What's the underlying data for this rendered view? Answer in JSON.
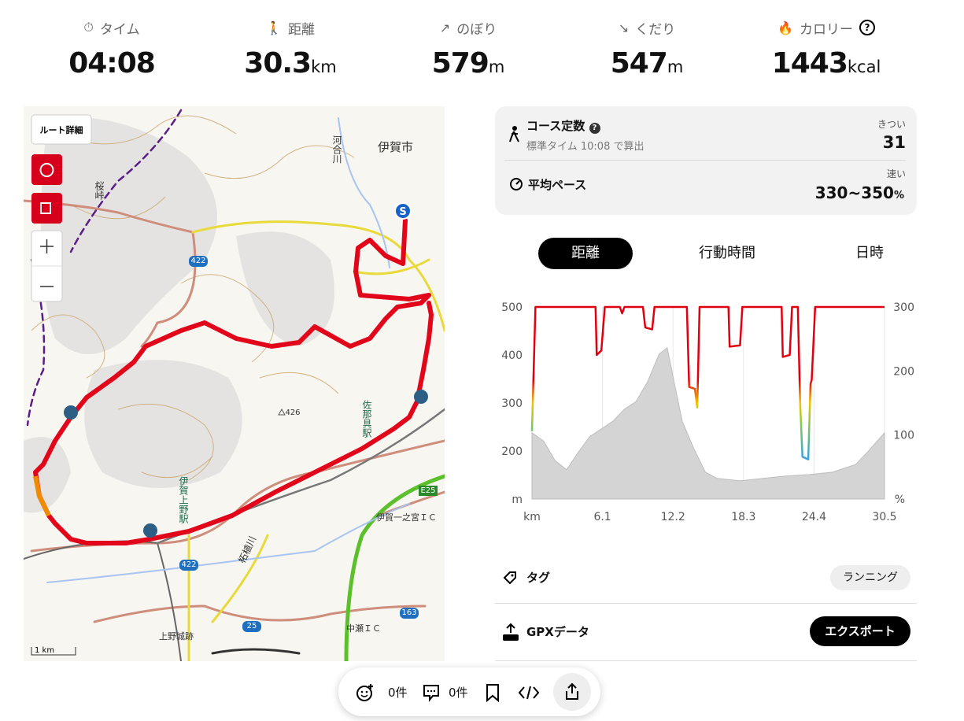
{
  "stats": [
    {
      "label": "タイム",
      "value": "04:08"
    },
    {
      "label": "距離",
      "value": 30.3,
      "unit": "km"
    },
    {
      "label": "のぼり",
      "value": 579,
      "unit": "m"
    },
    {
      "label": "くだり",
      "value": 547,
      "unit": "m"
    },
    {
      "label": "カロリー",
      "value": 1443,
      "unit": "kcal"
    }
  ],
  "map": {
    "button": "ルート詳細",
    "labels": [
      "伊賀市",
      "河合川",
      "桜峠",
      "422",
      "426",
      "佐那具駅",
      "伊賀上野駅",
      "E25",
      "伊賀一之宮ＩＣ",
      "柘植川",
      "上野城跡",
      "中瀬ＩＣ",
      "163",
      "25",
      "422"
    ],
    "scale": "1 km"
  },
  "course": {
    "title": "コース定数",
    "note": "標準タイム 10:08 で算出",
    "level": "きつい",
    "value": 31,
    "pace_title": "平均ペース",
    "pace_level": "速い",
    "pace_value": "330~350",
    "pace_unit": "%"
  },
  "tabs": [
    "距離",
    "行動時間",
    "日時"
  ],
  "active_tab": 0,
  "chart_data": {
    "type": "line",
    "x_label": "km",
    "y_label": "m",
    "y2_label": "%",
    "xlim": [
      0,
      30.5
    ],
    "xticks": [
      6.1,
      12.2,
      18.3,
      24.4,
      30.5
    ],
    "ylim": [
      100,
      500
    ],
    "yticks": [
      200,
      300,
      400,
      500
    ],
    "y2lim": [
      0,
      300
    ],
    "y2ticks": [
      100,
      200,
      300
    ],
    "grid": true,
    "series": [
      {
        "kind": "area",
        "color": "#d4d4d4",
        "x": [
          0,
          1,
          2,
          3,
          4,
          5,
          6,
          7,
          8,
          9,
          10,
          11,
          11.7,
          12.5,
          13,
          14,
          15,
          16,
          18,
          20,
          22,
          24,
          26,
          28,
          29,
          30.5
        ],
        "values": [
          238,
          221,
          180,
          161,
          197,
          230,
          246,
          262,
          287,
          303,
          344,
          402,
          415,
          320,
          262,
          205,
          156,
          143,
          138,
          143,
          148,
          151,
          156,
          172,
          197,
          238
        ]
      },
      {
        "kind": "line",
        "axis": "y2",
        "color": "#e00010",
        "x": [
          0,
          0.3,
          5.5,
          5.6,
          6.0,
          6.3,
          7.6,
          7.8,
          8.0,
          9.6,
          9.8,
          10.4,
          10.6,
          13.4,
          13.6,
          14.1,
          14.3,
          14.5,
          17.0,
          17.1,
          18.0,
          18.2,
          21.6,
          21.7,
          22.3,
          22.5,
          23.0,
          23.2,
          23.4,
          23.9,
          24.1,
          24.2,
          24.5,
          30.5
        ],
        "values": [
          106,
          300,
          300,
          225,
          232,
          300,
          300,
          290,
          300,
          300,
          268,
          265,
          300,
          300,
          175,
          172,
          143,
          300,
          300,
          238,
          240,
          300,
          300,
          222,
          225,
          300,
          300,
          150,
          66,
          62,
          180,
          186,
          300,
          300
        ]
      }
    ]
  },
  "tag": {
    "label": "タグ",
    "value": "ランニング"
  },
  "gpx": {
    "label": "GPXデータ",
    "button": "エクスポート"
  },
  "toolbar": {
    "reactions": "0件",
    "comments": "0件"
  }
}
